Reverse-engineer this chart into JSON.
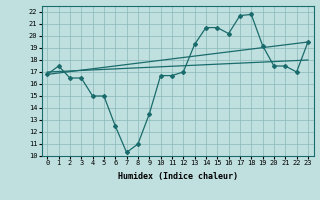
{
  "xlabel": "Humidex (Indice chaleur)",
  "ylabel": "",
  "bg_color": "#c0e0e0",
  "line_color": "#1a6b6b",
  "xlim": [
    -0.5,
    23.5
  ],
  "ylim": [
    10,
    22.5
  ],
  "yticks": [
    10,
    11,
    12,
    13,
    14,
    15,
    16,
    17,
    18,
    19,
    20,
    21,
    22
  ],
  "xticks": [
    0,
    1,
    2,
    3,
    4,
    5,
    6,
    7,
    8,
    9,
    10,
    11,
    12,
    13,
    14,
    15,
    16,
    17,
    18,
    19,
    20,
    21,
    22,
    23
  ],
  "series1_x": [
    0,
    1,
    2,
    3,
    4,
    5,
    6,
    7,
    8,
    9,
    10,
    11,
    12,
    13,
    14,
    15,
    16,
    17,
    18,
    19,
    20,
    21,
    22,
    23
  ],
  "series1_y": [
    16.8,
    17.5,
    16.5,
    16.5,
    15.0,
    15.0,
    12.5,
    10.3,
    11.0,
    13.5,
    16.7,
    16.7,
    17.0,
    19.3,
    20.7,
    20.7,
    20.2,
    21.7,
    21.8,
    19.2,
    17.5,
    17.5,
    17.0,
    19.5
  ],
  "series2_x": [
    0,
    23
  ],
  "series2_y": [
    16.8,
    19.5
  ],
  "series3_x": [
    0,
    23
  ],
  "series3_y": [
    17.0,
    18.0
  ]
}
